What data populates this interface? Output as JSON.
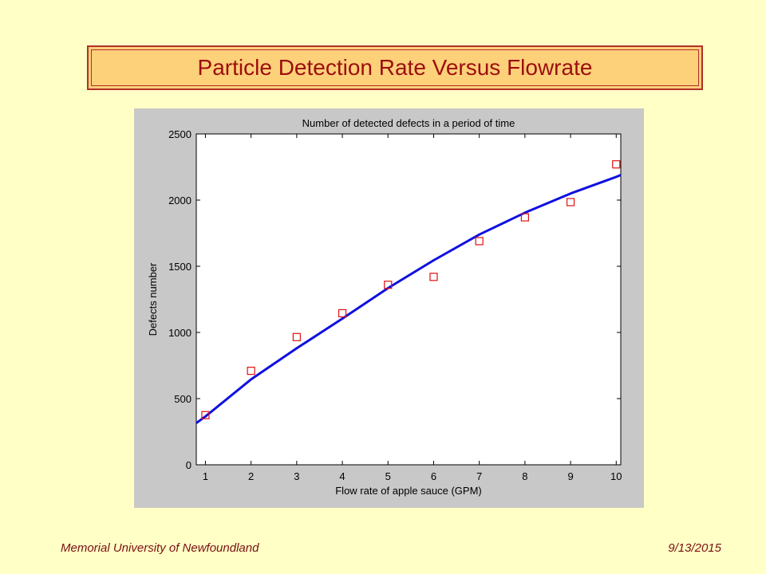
{
  "slide": {
    "title": "Particle Detection Rate Versus Flowrate",
    "footer_left": "Memorial University of Newfoundland",
    "footer_right": "9/13/2015"
  },
  "colors": {
    "background": "#ffffc6",
    "title_fill": "#fdd07a",
    "title_border": "#b03028",
    "title_text": "#9c0e0e",
    "fit_line": "#1010e0",
    "markers": "#e01010"
  },
  "chart_data": {
    "type": "scatter",
    "title": "Number of detected defects in a period of time",
    "xlabel": "Flow rate of apple sauce (GPM)",
    "ylabel": "Defects number",
    "xlim": [
      0.8,
      10.1
    ],
    "ylim": [
      0,
      2500
    ],
    "xticks": [
      1,
      2,
      3,
      4,
      5,
      6,
      7,
      8,
      9,
      10
    ],
    "yticks": [
      0,
      500,
      1000,
      1500,
      2000,
      2500
    ],
    "grid": false,
    "legend": "none",
    "series": [
      {
        "kind": "markers",
        "marker": "square",
        "x": [
          1,
          2,
          3,
          4,
          5,
          6,
          7,
          8,
          9,
          10
        ],
        "y": [
          375,
          710,
          965,
          1145,
          1360,
          1420,
          1690,
          1870,
          1985,
          2270
        ]
      },
      {
        "kind": "line",
        "x": [
          0.8,
          1,
          2,
          3,
          4,
          5,
          6,
          7,
          8,
          9,
          10,
          10.1
        ],
        "y": [
          315,
          365,
          645,
          880,
          1105,
          1335,
          1545,
          1740,
          1905,
          2050,
          2175,
          2190
        ]
      }
    ]
  }
}
